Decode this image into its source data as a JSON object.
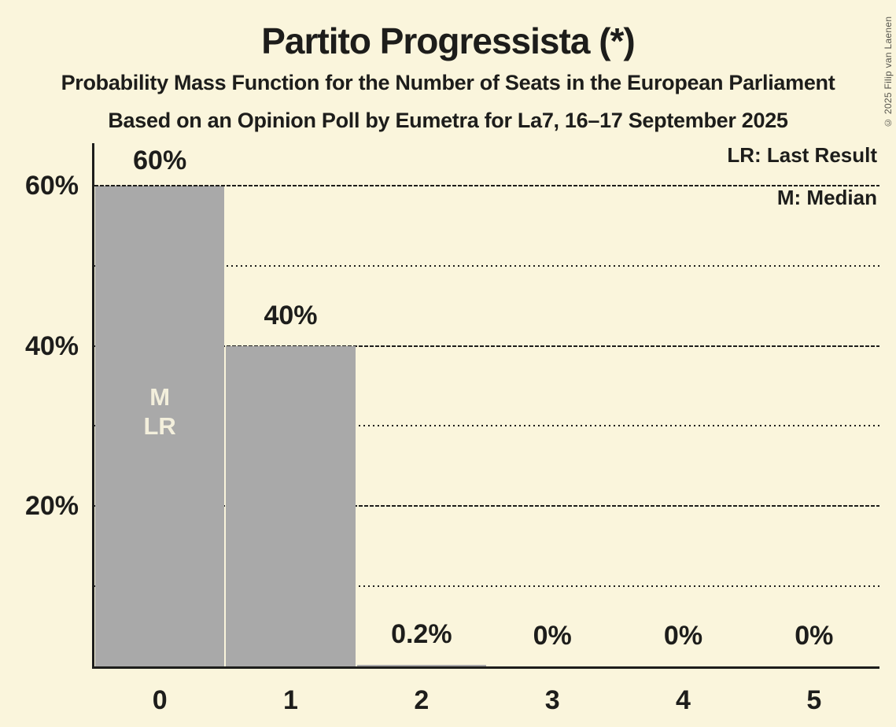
{
  "copyright": "© 2025 Filip van Laenen",
  "legend": {
    "lr": "LR: Last Result",
    "m": "M: Median"
  },
  "annotations": {
    "median_label": "M",
    "last_result_label": "LR"
  },
  "colors": {
    "background": "#FAF5DC",
    "bar": "#A9A9A9",
    "text": "#1D1D1B",
    "bar_annotation_text": "#F3EFDC",
    "copyright_text": "#55544C"
  },
  "chart_data": {
    "type": "bar",
    "title": "Partito Progressista (*)",
    "subtitle": "Probability Mass Function for the Number of Seats in the European Parliament",
    "subtitle2": "Based on an Opinion Poll by Eumetra for La7, 16–17 September 2025",
    "xlabel": "",
    "ylabel": "",
    "categories": [
      "0",
      "1",
      "2",
      "3",
      "4",
      "5"
    ],
    "values": [
      60,
      40,
      0.2,
      0,
      0,
      0
    ],
    "bar_labels": [
      "60%",
      "40%",
      "0.2%",
      "0%",
      "0%",
      "0%"
    ],
    "y_ticks": [
      {
        "label": "60%",
        "value": 60
      },
      {
        "label": "40%",
        "value": 40
      },
      {
        "label": "20%",
        "value": 20
      }
    ],
    "ylim": [
      0,
      65.3
    ],
    "gridlines": {
      "major": [
        20,
        40,
        60
      ],
      "minor": [
        10,
        30,
        50
      ]
    },
    "legend_position": "top-right",
    "legend_entries": [
      "LR: Last Result",
      "M: Median"
    ],
    "bar_annotations": [
      {
        "category": "0",
        "labels": [
          "M",
          "LR"
        ]
      }
    ]
  }
}
